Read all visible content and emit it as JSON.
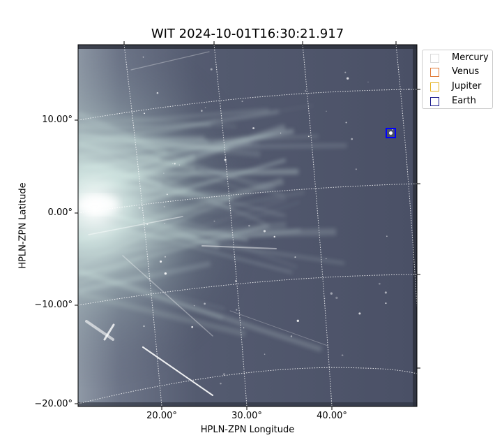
{
  "title": "WIT 2024-10-01T16:30:21.917",
  "axes": {
    "xlabel": "HPLN-ZPN Longitude",
    "ylabel": "HPLN-ZPN Latitude",
    "x_ticks": [
      "20.00°",
      "30.00°",
      "40.00°"
    ],
    "y_ticks": [
      "10.00°",
      "0.00°",
      "−10.00°",
      "−20.00°"
    ]
  },
  "legend": {
    "placement": "outside-top-right",
    "items": [
      {
        "label": "Mercury",
        "color": "#d9d9d9"
      },
      {
        "label": "Venus",
        "color": "#e07b39"
      },
      {
        "label": "Jupiter",
        "color": "#e6b422"
      },
      {
        "label": "Earth",
        "color": "#1a1a8c"
      }
    ]
  },
  "colors": {
    "sky_dark": "#4a5066",
    "streamer": "#cfe3de",
    "earth_marker": "#0000ff"
  }
}
